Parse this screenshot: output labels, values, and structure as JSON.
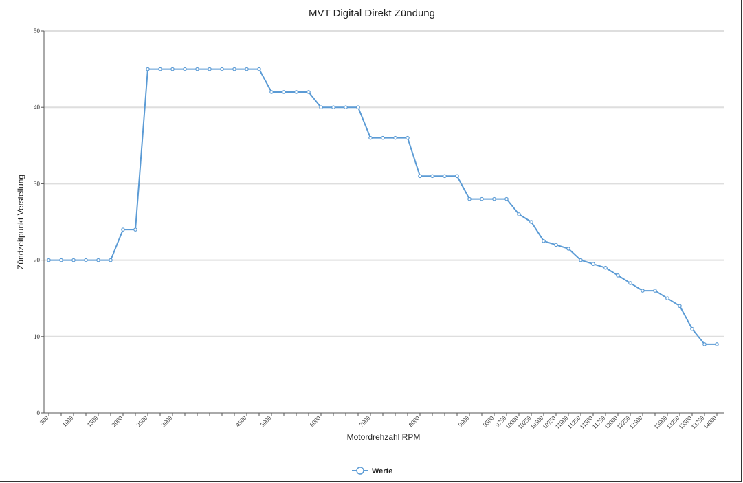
{
  "chart_data": {
    "type": "line",
    "title": "MVT Digital Direkt Zündung",
    "xlabel": "Motordrehzahl RPM",
    "ylabel": "Zündzeitpunkt Verstellung",
    "ylim": [
      0,
      50
    ],
    "yticks": [
      0,
      10,
      20,
      30,
      40,
      50
    ],
    "grid": true,
    "legend_placement": "bottom-center",
    "x_tick_labels": {
      "0": "300",
      "2": "1000",
      "4": "1500",
      "6": "2000",
      "8": "2500",
      "10": "3000",
      "16": "4500",
      "18": "5000",
      "22": "6000",
      "26": "7000",
      "30": "8000",
      "34": "9000",
      "36": "9500",
      "37": "9750",
      "38": "10000",
      "39": "10250",
      "40": "10500",
      "41": "10750",
      "42": "11000",
      "43": "11250",
      "44": "11500",
      "45": "11750",
      "46": "12000",
      "47": "12250",
      "48": "12500",
      "50": "13000",
      "51": "13250",
      "52": "13500",
      "53": "13750",
      "54": "14000"
    },
    "series": [
      {
        "name": "Werte",
        "color": "#5b9bd5",
        "values": [
          20,
          20,
          20,
          20,
          20,
          20,
          24,
          24,
          45,
          45,
          45,
          45,
          45,
          45,
          45,
          45,
          45,
          45,
          42,
          42,
          42,
          42,
          40,
          40,
          40,
          40,
          36,
          36,
          36,
          36,
          31,
          31,
          31,
          31,
          28,
          28,
          28,
          28,
          26,
          25,
          22.5,
          22,
          21.5,
          20,
          19.5,
          19,
          18,
          17,
          16,
          16,
          15,
          14,
          11,
          9,
          9
        ]
      }
    ]
  }
}
